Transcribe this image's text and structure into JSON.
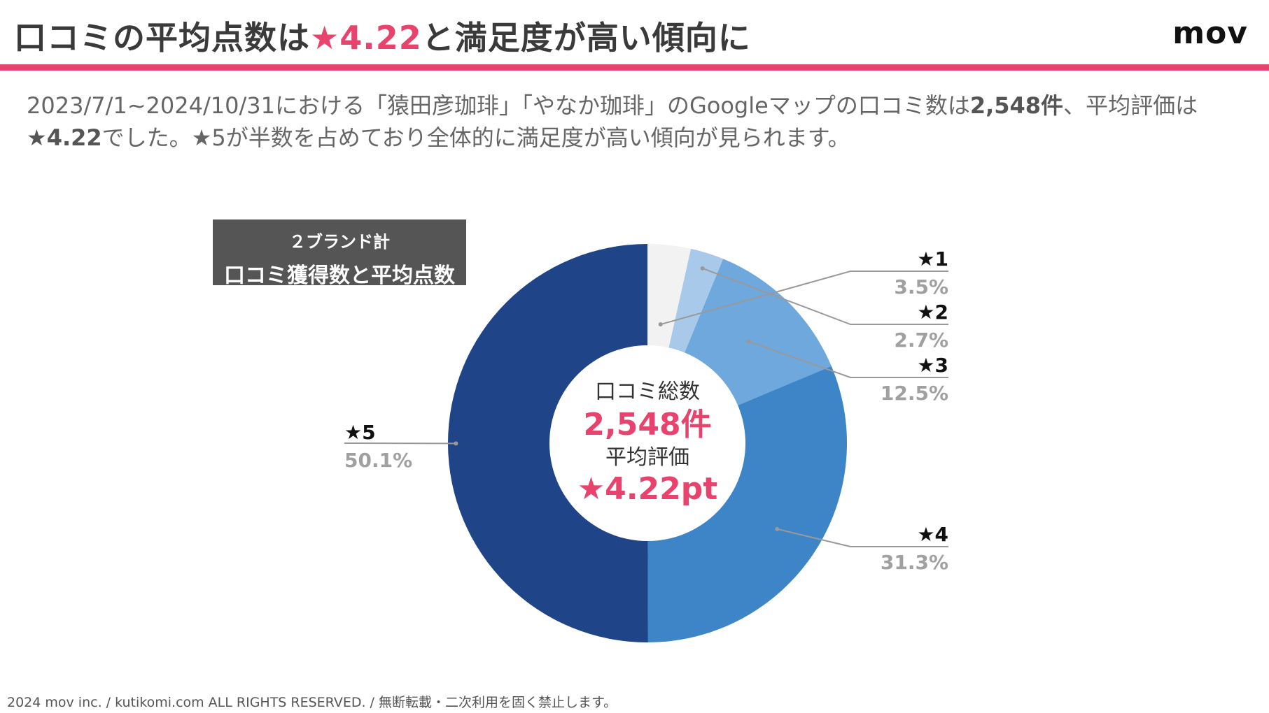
{
  "header": {
    "title_prefix": "口コミの平均点数は",
    "title_highlight": "★4.22",
    "title_suffix": "と満足度が高い傾向に",
    "logo": "mov"
  },
  "description": {
    "part1": "2023/7/1~2024/10/31における「猿田彦珈琲」「やなか珈琲」のGoogleマップの口コミ数は",
    "count_bold": "2,548件",
    "part2": "、平均評価は",
    "rating_bold": "★4.22",
    "part3": "でした。★5が半数を占めており全体的に満足度が高い傾向が見られます。"
  },
  "badge": {
    "line1": "２ブランド計",
    "line2": "口コミ獲得数と平均点数"
  },
  "center": {
    "label1": "口コミ総数",
    "value1": "2,548件",
    "label2": "平均評価",
    "value2": "★4.22pt"
  },
  "chart_data": {
    "type": "pie",
    "variant": "donut",
    "title": "口コミ獲得数と平均点数",
    "categories": [
      "★1",
      "★2",
      "★3",
      "★4",
      "★5"
    ],
    "values": [
      3.5,
      2.7,
      12.5,
      31.3,
      50.1
    ],
    "value_labels": [
      "3.5%",
      "2.7%",
      "12.5%",
      "31.3%",
      "50.1%"
    ],
    "colors": [
      "#f2f2f2",
      "#a9c9ea",
      "#6fa8dc",
      "#3d85c6",
      "#1f4487"
    ]
  },
  "colors": {
    "accent": "#e8436c",
    "badge_bg": "#555555"
  },
  "footer": {
    "copyright": "2024 mov inc. / kutikomi.com ALL RIGHTS RESERVED. / 無断転載・二次利用を固く禁止します。"
  }
}
